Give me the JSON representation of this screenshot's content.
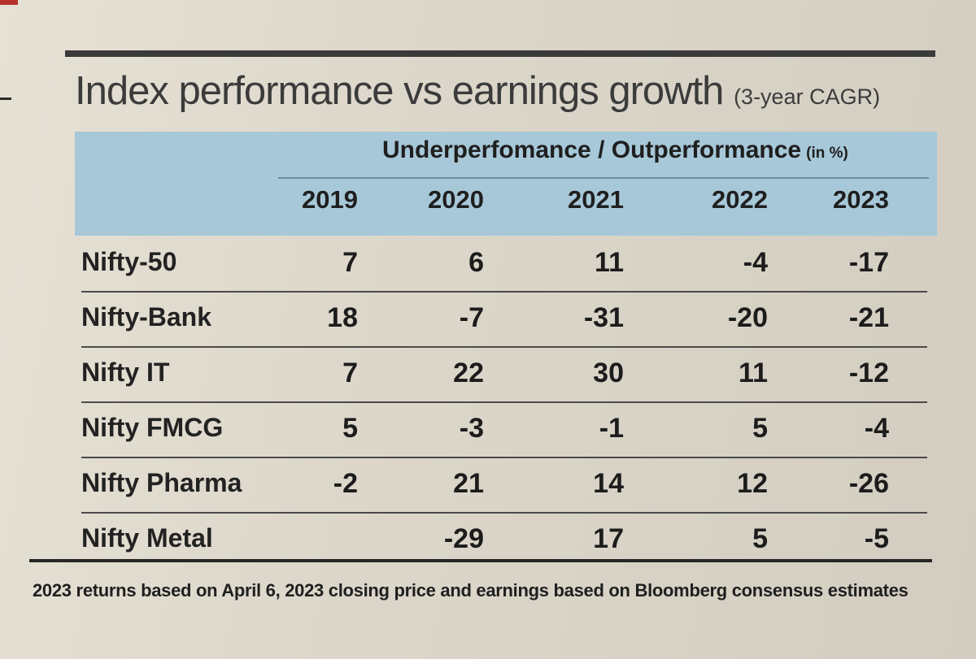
{
  "chart_data": {
    "type": "table",
    "title": "Index performance vs earnings growth",
    "subtitle": "(3-year CAGR)",
    "group_header": "Underperfomance / Outperformance",
    "unit": "(in %)",
    "columns": [
      "2019",
      "2020",
      "2021",
      "2022",
      "2023"
    ],
    "rows": [
      {
        "label": "Nifty-50",
        "values": [
          "7",
          "6",
          "11",
          "-4",
          "-17"
        ]
      },
      {
        "label": "Nifty-Bank",
        "values": [
          "18",
          "-7",
          "-31",
          "-20",
          "-21"
        ]
      },
      {
        "label": "Nifty IT",
        "values": [
          "7",
          "22",
          "30",
          "11",
          "-12"
        ]
      },
      {
        "label": "Nifty FMCG",
        "values": [
          "5",
          "-3",
          "-1",
          "5",
          "-4"
        ]
      },
      {
        "label": "Nifty Pharma",
        "values": [
          "-2",
          "21",
          "14",
          "12",
          "-26"
        ]
      },
      {
        "label": "Nifty Metal",
        "values": [
          "",
          "-29",
          "17",
          "5",
          "-5"
        ]
      }
    ],
    "footnote": "2023 returns based on April 6, 2023 closing price and earnings based on Bloomberg consensus estimates"
  },
  "colors": {
    "header_band": "#a7c8d8",
    "rules": "#262626",
    "title_text": "#3b3b3b"
  }
}
